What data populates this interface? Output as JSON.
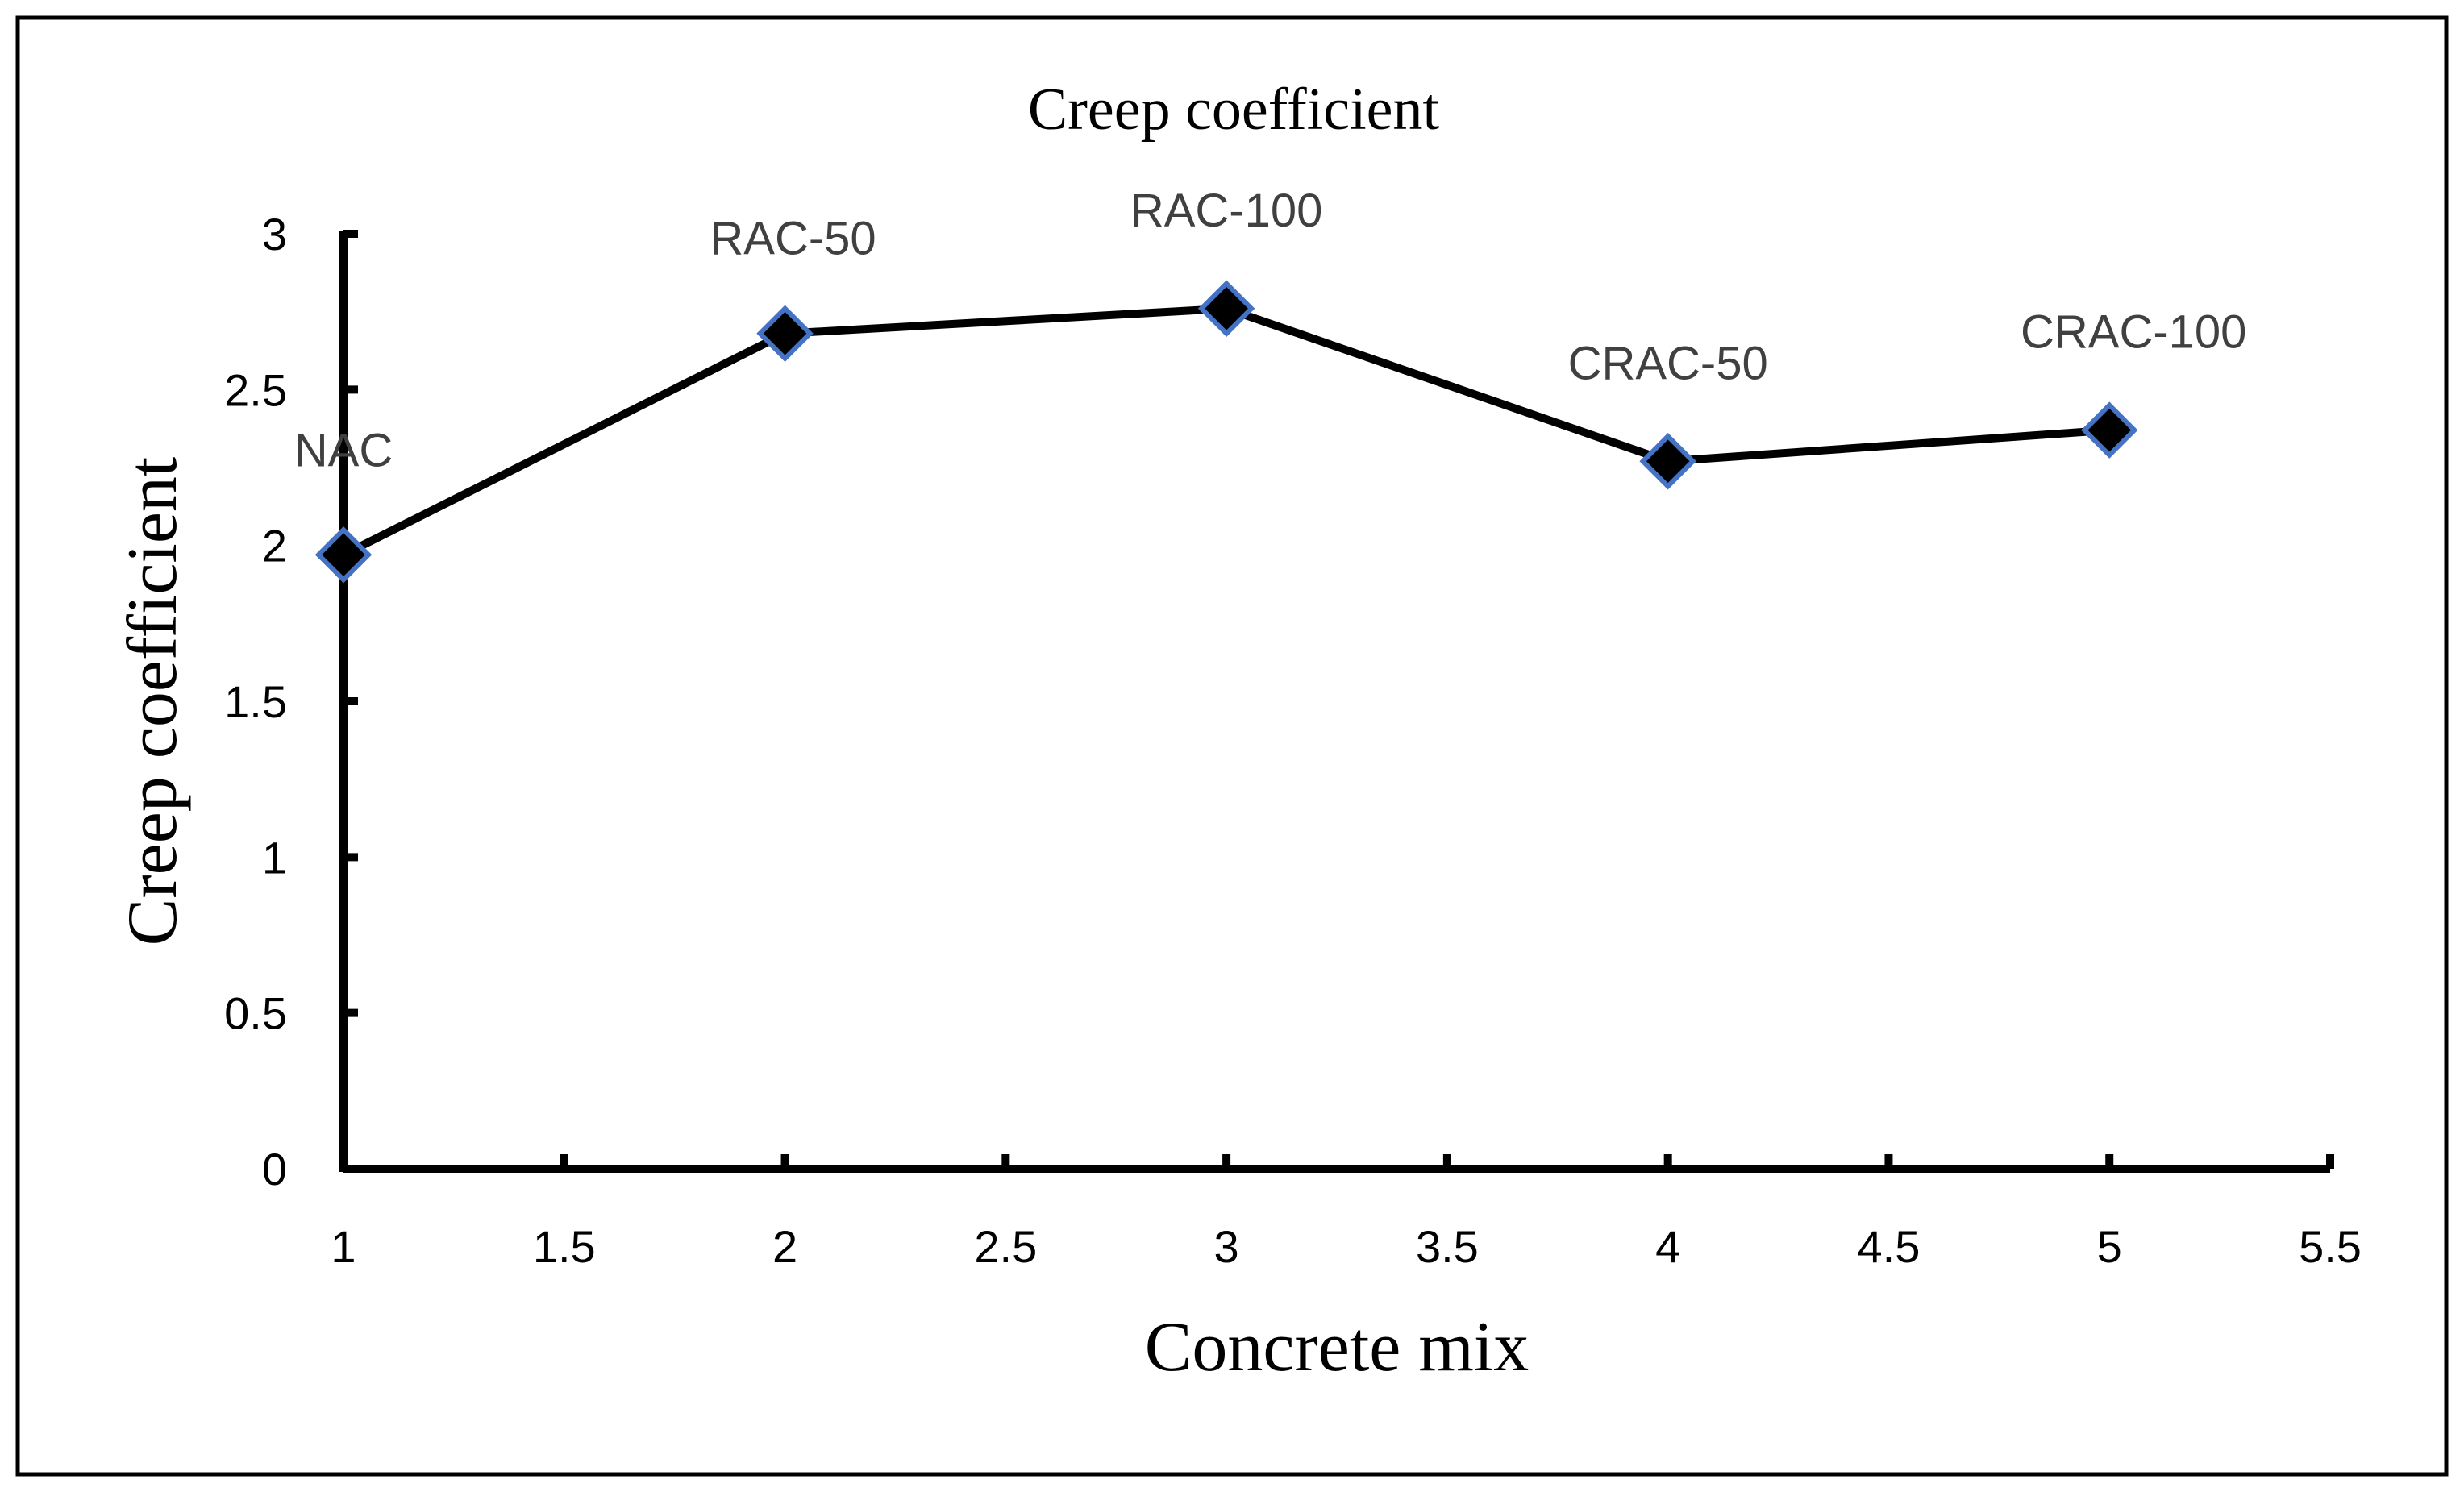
{
  "chart_data": {
    "type": "line",
    "title": "Creep coefficient",
    "xlabel": "Concrete mix",
    "ylabel": "Creep coefficient",
    "xlim": [
      1,
      5.5
    ],
    "ylim": [
      0,
      3
    ],
    "x_ticks": [
      1,
      1.5,
      2,
      2.5,
      3,
      3.5,
      4,
      4.5,
      5,
      5.5
    ],
    "x_tick_labels": [
      "1",
      "1.5",
      "2",
      "2.5",
      "3",
      "3.5",
      "4",
      "4.5",
      "5",
      "5.5"
    ],
    "y_ticks": [
      0,
      0.5,
      1,
      1.5,
      2,
      2.5,
      3
    ],
    "y_tick_labels": [
      "0",
      "0.5",
      "1",
      "1.5",
      "2",
      "2.5",
      "3"
    ],
    "grid": false,
    "legend": "none",
    "series": [
      {
        "name": "Creep coefficient",
        "marker": "diamond",
        "line_color": "#000000",
        "marker_fill": "#000000",
        "marker_edge": "#4472c4",
        "x": [
          1,
          2,
          3,
          4,
          5
        ],
        "values": [
          1.97,
          2.68,
          2.76,
          2.27,
          2.37
        ],
        "labels": [
          "NAC",
          "RAC-50",
          "RAC-100",
          "CRAC-50",
          "CRAC-100"
        ]
      }
    ],
    "label_color": "#404040"
  }
}
